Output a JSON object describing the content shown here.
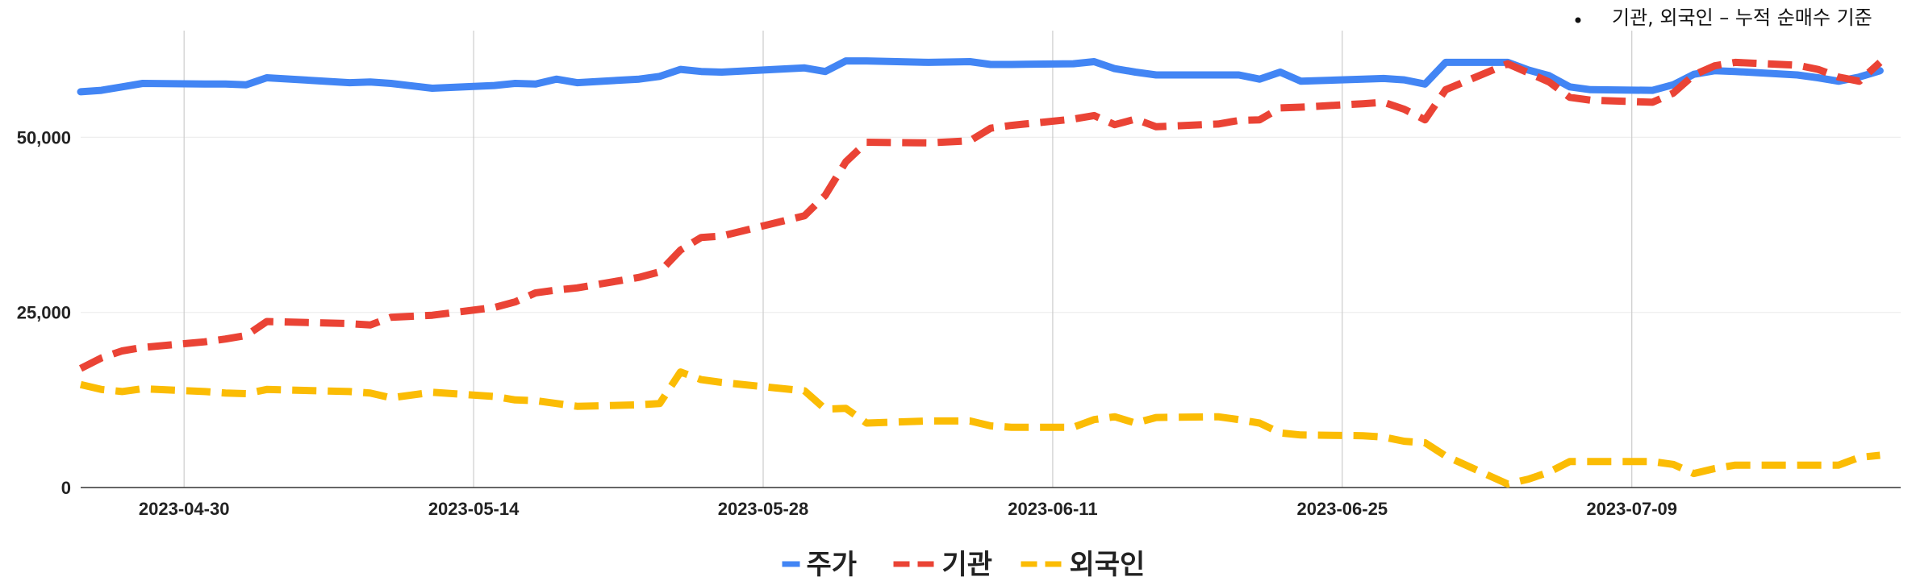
{
  "chart_data": {
    "type": "line",
    "note": "기관, 외국인 – 누적 순매수 기준",
    "xlabel": "",
    "ylabel": "",
    "ylim": [
      0,
      65000
    ],
    "xlim": [
      "2023-04-25",
      "2023-07-22"
    ],
    "yticks": [
      {
        "value": 0,
        "label": "0"
      },
      {
        "value": 25000,
        "label": "25,000"
      },
      {
        "value": 50000,
        "label": "50,000"
      }
    ],
    "xticks": [
      {
        "date": "2023-04-30",
        "label": "2023-04-30"
      },
      {
        "date": "2023-05-14",
        "label": "2023-05-14"
      },
      {
        "date": "2023-05-28",
        "label": "2023-05-28"
      },
      {
        "date": "2023-06-11",
        "label": "2023-06-11"
      },
      {
        "date": "2023-06-25",
        "label": "2023-06-25"
      },
      {
        "date": "2023-07-09",
        "label": "2023-07-09"
      }
    ],
    "grid": {
      "vertical": true,
      "horizontal": true
    },
    "legend_position": "bottom",
    "series": [
      {
        "name": "주가",
        "color": "#4285f4",
        "style": "solid",
        "points": [
          [
            "2023-04-25",
            56500
          ],
          [
            "2023-04-26",
            56700
          ],
          [
            "2023-04-27",
            57200
          ],
          [
            "2023-04-28",
            57700
          ],
          [
            "2023-05-01",
            57600
          ],
          [
            "2023-05-02",
            57600
          ],
          [
            "2023-05-03",
            57500
          ],
          [
            "2023-05-04",
            58500
          ],
          [
            "2023-05-08",
            57800
          ],
          [
            "2023-05-09",
            57900
          ],
          [
            "2023-05-10",
            57700
          ],
          [
            "2023-05-12",
            57000
          ],
          [
            "2023-05-15",
            57400
          ],
          [
            "2023-05-16",
            57700
          ],
          [
            "2023-05-17",
            57600
          ],
          [
            "2023-05-18",
            58300
          ],
          [
            "2023-05-19",
            57800
          ],
          [
            "2023-05-22",
            58300
          ],
          [
            "2023-05-23",
            58700
          ],
          [
            "2023-05-24",
            59700
          ],
          [
            "2023-05-25",
            59400
          ],
          [
            "2023-05-26",
            59300
          ],
          [
            "2023-05-30",
            59900
          ],
          [
            "2023-05-31",
            59400
          ],
          [
            "2023-06-01",
            60900
          ],
          [
            "2023-06-02",
            60900
          ],
          [
            "2023-06-05",
            60700
          ],
          [
            "2023-06-07",
            60800
          ],
          [
            "2023-06-08",
            60400
          ],
          [
            "2023-06-09",
            60400
          ],
          [
            "2023-06-12",
            60500
          ],
          [
            "2023-06-13",
            60800
          ],
          [
            "2023-06-14",
            59800
          ],
          [
            "2023-06-15",
            59300
          ],
          [
            "2023-06-16",
            58900
          ],
          [
            "2023-06-19",
            58900
          ],
          [
            "2023-06-20",
            58900
          ],
          [
            "2023-06-21",
            58300
          ],
          [
            "2023-06-22",
            59300
          ],
          [
            "2023-06-23",
            58000
          ],
          [
            "2023-06-26",
            58300
          ],
          [
            "2023-06-27",
            58400
          ],
          [
            "2023-06-28",
            58200
          ],
          [
            "2023-06-29",
            57600
          ],
          [
            "2023-06-30",
            60700
          ],
          [
            "2023-07-03",
            60700
          ],
          [
            "2023-07-04",
            59600
          ],
          [
            "2023-07-05",
            58800
          ],
          [
            "2023-07-06",
            57200
          ],
          [
            "2023-07-07",
            56800
          ],
          [
            "2023-07-10",
            56700
          ],
          [
            "2023-07-11",
            57500
          ],
          [
            "2023-07-12",
            59000
          ],
          [
            "2023-07-13",
            59500
          ],
          [
            "2023-07-14",
            59400
          ],
          [
            "2023-07-17",
            58900
          ],
          [
            "2023-07-18",
            58500
          ],
          [
            "2023-07-19",
            58000
          ],
          [
            "2023-07-20",
            58600
          ],
          [
            "2023-07-21",
            59500
          ]
        ]
      },
      {
        "name": "기관",
        "color": "#ea4335",
        "style": "dashed",
        "points": [
          [
            "2023-04-25",
            17000
          ],
          [
            "2023-04-26",
            18500
          ],
          [
            "2023-04-27",
            19500
          ],
          [
            "2023-04-28",
            20000
          ],
          [
            "2023-05-01",
            20800
          ],
          [
            "2023-05-02",
            21200
          ],
          [
            "2023-05-03",
            21700
          ],
          [
            "2023-05-04",
            23700
          ],
          [
            "2023-05-08",
            23400
          ],
          [
            "2023-05-09",
            23200
          ],
          [
            "2023-05-10",
            24300
          ],
          [
            "2023-05-12",
            24600
          ],
          [
            "2023-05-15",
            25700
          ],
          [
            "2023-05-16",
            26500
          ],
          [
            "2023-05-17",
            27800
          ],
          [
            "2023-05-18",
            28200
          ],
          [
            "2023-05-19",
            28500
          ],
          [
            "2023-05-22",
            30000
          ],
          [
            "2023-05-23",
            30800
          ],
          [
            "2023-05-24",
            33900
          ],
          [
            "2023-05-25",
            35700
          ],
          [
            "2023-05-26",
            35900
          ],
          [
            "2023-05-30",
            38800
          ],
          [
            "2023-05-31",
            41700
          ],
          [
            "2023-06-01",
            46500
          ],
          [
            "2023-06-02",
            49300
          ],
          [
            "2023-06-05",
            49200
          ],
          [
            "2023-06-07",
            49500
          ],
          [
            "2023-06-08",
            51300
          ],
          [
            "2023-06-09",
            51700
          ],
          [
            "2023-06-12",
            52600
          ],
          [
            "2023-06-13",
            53100
          ],
          [
            "2023-06-14",
            51800
          ],
          [
            "2023-06-15",
            52600
          ],
          [
            "2023-06-16",
            51500
          ],
          [
            "2023-06-19",
            51900
          ],
          [
            "2023-06-20",
            52400
          ],
          [
            "2023-06-21",
            52500
          ],
          [
            "2023-06-22",
            54200
          ],
          [
            "2023-06-23",
            54300
          ],
          [
            "2023-06-26",
            54800
          ],
          [
            "2023-06-27",
            55000
          ],
          [
            "2023-06-28",
            54000
          ],
          [
            "2023-06-29",
            52500
          ],
          [
            "2023-06-30",
            56800
          ],
          [
            "2023-07-03",
            60500
          ],
          [
            "2023-07-04",
            59200
          ],
          [
            "2023-07-05",
            57900
          ],
          [
            "2023-07-06",
            55700
          ],
          [
            "2023-07-07",
            55300
          ],
          [
            "2023-07-10",
            55000
          ],
          [
            "2023-07-11",
            56300
          ],
          [
            "2023-07-12",
            58900
          ],
          [
            "2023-07-13",
            60200
          ],
          [
            "2023-07-14",
            60700
          ],
          [
            "2023-07-17",
            60300
          ],
          [
            "2023-07-18",
            59700
          ],
          [
            "2023-07-19",
            58600
          ],
          [
            "2023-07-20",
            58000
          ],
          [
            "2023-07-21",
            60700
          ]
        ]
      },
      {
        "name": "외국인",
        "color": "#fbbc04",
        "style": "dashed",
        "points": [
          [
            "2023-04-25",
            14700
          ],
          [
            "2023-04-26",
            14000
          ],
          [
            "2023-04-27",
            13700
          ],
          [
            "2023-04-28",
            14100
          ],
          [
            "2023-05-01",
            13700
          ],
          [
            "2023-05-02",
            13500
          ],
          [
            "2023-05-03",
            13400
          ],
          [
            "2023-05-04",
            14000
          ],
          [
            "2023-05-08",
            13700
          ],
          [
            "2023-05-09",
            13500
          ],
          [
            "2023-05-10",
            12800
          ],
          [
            "2023-05-12",
            13600
          ],
          [
            "2023-05-15",
            13000
          ],
          [
            "2023-05-16",
            12500
          ],
          [
            "2023-05-17",
            12400
          ],
          [
            "2023-05-18",
            12000
          ],
          [
            "2023-05-19",
            11600
          ],
          [
            "2023-05-22",
            11800
          ],
          [
            "2023-05-23",
            12000
          ],
          [
            "2023-05-24",
            16500
          ],
          [
            "2023-05-25",
            15400
          ],
          [
            "2023-05-26",
            15000
          ],
          [
            "2023-05-30",
            13800
          ],
          [
            "2023-05-31",
            11200
          ],
          [
            "2023-06-01",
            11300
          ],
          [
            "2023-06-02",
            9200
          ],
          [
            "2023-06-05",
            9500
          ],
          [
            "2023-06-07",
            9500
          ],
          [
            "2023-06-08",
            8800
          ],
          [
            "2023-06-09",
            8600
          ],
          [
            "2023-06-12",
            8600
          ],
          [
            "2023-06-13",
            9700
          ],
          [
            "2023-06-14",
            10100
          ],
          [
            "2023-06-15",
            9200
          ],
          [
            "2023-06-16",
            10000
          ],
          [
            "2023-06-19",
            10100
          ],
          [
            "2023-06-20",
            9700
          ],
          [
            "2023-06-21",
            9200
          ],
          [
            "2023-06-22",
            7800
          ],
          [
            "2023-06-23",
            7500
          ],
          [
            "2023-06-26",
            7400
          ],
          [
            "2023-06-27",
            7200
          ],
          [
            "2023-06-28",
            6600
          ],
          [
            "2023-06-29",
            6400
          ],
          [
            "2023-06-30",
            4500
          ],
          [
            "2023-07-03",
            500
          ],
          [
            "2023-07-04",
            1200
          ],
          [
            "2023-07-05",
            2200
          ],
          [
            "2023-07-06",
            3700
          ],
          [
            "2023-07-07",
            3700
          ],
          [
            "2023-07-10",
            3700
          ],
          [
            "2023-07-11",
            3300
          ],
          [
            "2023-07-12",
            2000
          ],
          [
            "2023-07-13",
            2700
          ],
          [
            "2023-07-14",
            3200
          ],
          [
            "2023-07-17",
            3200
          ],
          [
            "2023-07-18",
            3200
          ],
          [
            "2023-07-19",
            3200
          ],
          [
            "2023-07-20",
            4300
          ],
          [
            "2023-07-21",
            4600
          ]
        ]
      }
    ]
  }
}
